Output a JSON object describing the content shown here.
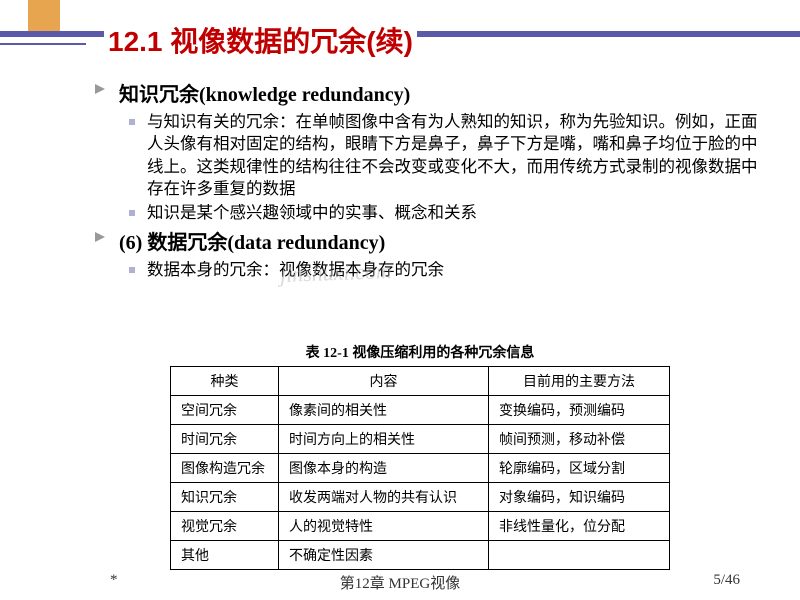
{
  "title": "12.1 视像数据的冗余(续)",
  "bullets": {
    "b1": {
      "label": "知识冗余(knowledge redundancy)"
    },
    "b1_subs": [
      "与知识有关的冗余：在单帧图像中含有为人熟知的知识，称为先验知识。例如，正面人头像有相对固定的结构，眼睛下方是鼻子，鼻子下方是嘴，嘴和鼻子均位于脸的中线上。这类规律性的结构往往不会改变或变化不大，而用传统方式录制的视像数据中存在许多重复的数据",
      "知识是某个感兴趣领域中的实事、概念和关系"
    ],
    "b2": {
      "label": "(6) 数据冗余(data redundancy)"
    },
    "b2_subs": [
      "数据本身的冗余：视像数据本身存的冗余"
    ]
  },
  "watermark": "jinshuxi.com",
  "table": {
    "caption": "表 12-1 视像压缩利用的各种冗余信息",
    "headers": [
      "种类",
      "内容",
      "目前用的主要方法"
    ],
    "rows": [
      [
        "空间冗余",
        "像素间的相关性",
        "变换编码，预测编码"
      ],
      [
        "时间冗余",
        "时间方向上的相关性",
        "帧间预测，移动补偿"
      ],
      [
        "图像构造冗余",
        "图像本身的构造",
        "轮廓编码，区域分割"
      ],
      [
        "知识冗余",
        "收发两端对人物的共有认识",
        "对象编码，知识编码"
      ],
      [
        "视觉冗余",
        "人的视觉特性",
        "非线性量化，位分配"
      ],
      [
        "其他",
        "不确定性因素",
        ""
      ]
    ]
  },
  "footer": {
    "left": "*",
    "center": "第12章 MPEG视像",
    "right": "5/46"
  }
}
